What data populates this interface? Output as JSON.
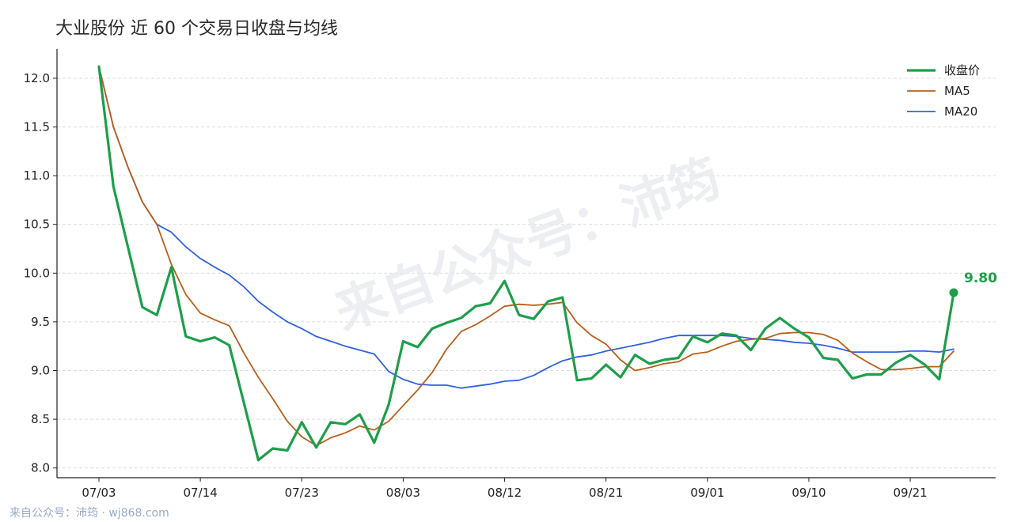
{
  "chart_data": {
    "type": "line",
    "title": "大业股份 近 60 个交易日收盘与均线",
    "xlabel": "",
    "ylabel": "",
    "ylim": [
      7.9,
      12.3
    ],
    "y_ticks": [
      8.0,
      8.5,
      9.0,
      9.5,
      10.0,
      10.5,
      11.0,
      11.5,
      12.0
    ],
    "x_ticks": [
      {
        "index": 0,
        "label": "07/03"
      },
      {
        "index": 7,
        "label": "07/14"
      },
      {
        "index": 14,
        "label": "07/23"
      },
      {
        "index": 21,
        "label": "08/03"
      },
      {
        "index": 28,
        "label": "08/12"
      },
      {
        "index": 35,
        "label": "08/21"
      },
      {
        "index": 42,
        "label": "09/01"
      },
      {
        "index": 49,
        "label": "09/10"
      },
      {
        "index": 56,
        "label": "09/21"
      }
    ],
    "grid": "horizontal dashed",
    "legend_position": "top-right",
    "series": [
      {
        "name": "收盘价",
        "color": "#1e9e4a",
        "values": [
          12.12,
          10.89,
          10.27,
          9.65,
          9.57,
          10.06,
          9.35,
          9.3,
          9.34,
          9.26,
          8.67,
          8.08,
          8.2,
          8.18,
          8.47,
          8.21,
          8.47,
          8.45,
          8.55,
          8.26,
          8.65,
          9.3,
          9.24,
          9.43,
          9.49,
          9.54,
          9.66,
          9.69,
          9.92,
          9.57,
          9.53,
          9.71,
          9.75,
          8.9,
          8.92,
          9.06,
          8.93,
          9.16,
          9.07,
          9.11,
          9.13,
          9.35,
          9.29,
          9.38,
          9.36,
          9.21,
          9.43,
          9.54,
          9.43,
          9.34,
          9.13,
          9.11,
          8.92,
          8.96,
          8.96,
          9.08,
          9.16,
          9.06,
          8.91,
          9.8
        ]
      },
      {
        "name": "MA5",
        "color": "#b85f1a",
        "values": [
          12.12,
          11.5,
          11.09,
          10.73,
          10.5,
          10.09,
          9.78,
          9.59,
          9.52,
          9.46,
          9.18,
          8.93,
          8.71,
          8.48,
          8.32,
          8.23,
          8.31,
          8.36,
          8.43,
          8.39,
          8.48,
          8.64,
          8.8,
          8.98,
          9.22,
          9.4,
          9.47,
          9.56,
          9.66,
          9.68,
          9.67,
          9.68,
          9.7,
          9.49,
          9.36,
          9.27,
          9.11,
          9.0,
          9.03,
          9.07,
          9.09,
          9.17,
          9.19,
          9.25,
          9.3,
          9.32,
          9.33,
          9.38,
          9.39,
          9.39,
          9.37,
          9.31,
          9.18,
          9.09,
          9.01,
          9.01,
          9.02,
          9.04,
          9.04,
          9.2
        ]
      },
      {
        "name": "MA20",
        "color": "#2f62e0",
        "values": [
          12.12,
          11.5,
          11.09,
          10.73,
          10.5,
          10.42,
          10.27,
          10.15,
          10.06,
          9.98,
          9.86,
          9.71,
          9.6,
          9.5,
          9.43,
          9.35,
          9.3,
          9.25,
          9.21,
          9.17,
          8.99,
          8.91,
          8.86,
          8.85,
          8.85,
          8.82,
          8.84,
          8.86,
          8.89,
          8.9,
          8.95,
          9.03,
          9.1,
          9.14,
          9.16,
          9.2,
          9.23,
          9.26,
          9.29,
          9.33,
          9.36,
          9.36,
          9.36,
          9.36,
          9.35,
          9.33,
          9.32,
          9.31,
          9.29,
          9.28,
          9.26,
          9.23,
          9.19,
          9.19,
          9.19,
          9.19,
          9.2,
          9.2,
          9.19,
          9.22
        ]
      }
    ],
    "annotations": [
      {
        "text": "9.80",
        "series": "收盘价",
        "index": 59,
        "color": "#1e9e4a"
      }
    ]
  },
  "watermark": {
    "diagonal": "来自公众号：沛筠",
    "bottom": "来自公众号：沛筠 · wj868.com"
  }
}
